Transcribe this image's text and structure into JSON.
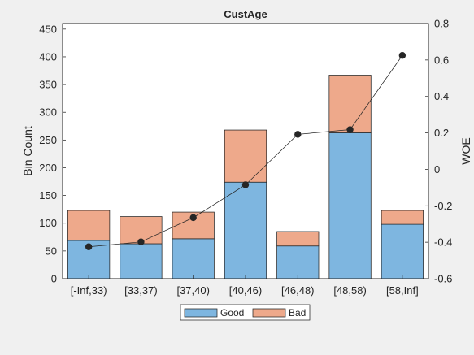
{
  "chart_data": {
    "type": "bar",
    "stacked": true,
    "title": "CustAge",
    "xlabel": "",
    "ylabel": "Bin Count",
    "y2label": "WOE",
    "categories": [
      "[-Inf,33)",
      "[33,37)",
      "[37,40)",
      "[40,46)",
      "[46,48)",
      "[48,58)",
      "[58,Inf]"
    ],
    "series": [
      {
        "name": "Good",
        "color": "#7eb6e0",
        "values": [
          69,
          63,
          72,
          174,
          59,
          263,
          98
        ]
      },
      {
        "name": "Bad",
        "color": "#eea98b",
        "values": [
          54,
          49,
          48,
          94,
          26,
          104,
          25
        ]
      }
    ],
    "woe": {
      "color": "#262626",
      "values": [
        -0.425,
        -0.398,
        -0.265,
        -0.085,
        0.192,
        0.218,
        0.625
      ]
    },
    "ylim": [
      0,
      460
    ],
    "yticks": [
      0,
      50,
      100,
      150,
      200,
      250,
      300,
      350,
      400,
      450
    ],
    "y2lim": [
      -0.6,
      0.8
    ],
    "y2ticks": [
      -0.6,
      -0.4,
      -0.2,
      0,
      0.2,
      0.4,
      0.6,
      0.8
    ],
    "grid": false,
    "legend": "bottom-center"
  }
}
